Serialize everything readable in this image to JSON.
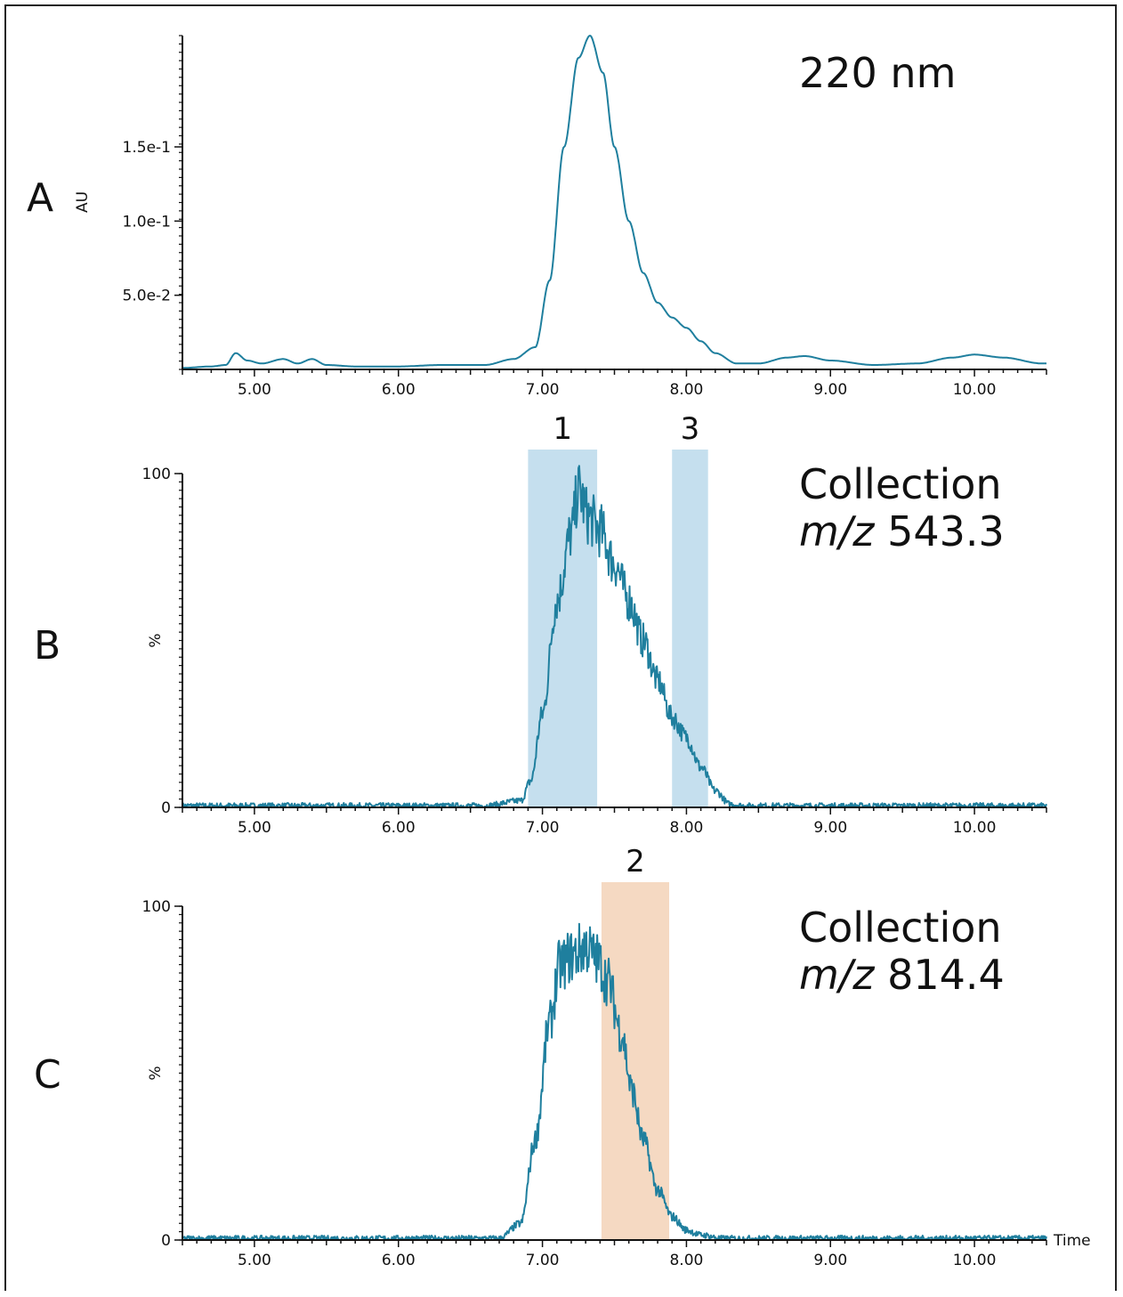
{
  "chart_data": [
    {
      "panel": "A",
      "type": "line",
      "annotation": "220 nm",
      "ylabel": "AU",
      "xlabel": "",
      "xlim": [
        4.5,
        10.5
      ],
      "ylim": [
        0,
        0.225
      ],
      "x_ticks": [
        "5.00",
        "6.00",
        "7.00",
        "8.00",
        "9.00",
        "10.00"
      ],
      "y_ticks": [
        {
          "value": 0.05,
          "label": "5.0e-2"
        },
        {
          "value": 0.1,
          "label": "1.0e-1"
        },
        {
          "value": 0.15,
          "label": "1.5e-1"
        }
      ],
      "color": "#1f7f9e",
      "series": [
        {
          "x": [
            4.5,
            4.7,
            4.8,
            4.87,
            4.95,
            5.05,
            5.2,
            5.3,
            5.4,
            5.5,
            5.7,
            6.0,
            6.3,
            6.6,
            6.8,
            6.95,
            7.05,
            7.15,
            7.25,
            7.33,
            7.42,
            7.5,
            7.6,
            7.7,
            7.8,
            7.9,
            8.0,
            8.1,
            8.2,
            8.35,
            8.5,
            8.7,
            8.82,
            9.0,
            9.3,
            9.6,
            9.85,
            10.0,
            10.2,
            10.47
          ],
          "y": [
            0.001,
            0.002,
            0.003,
            0.011,
            0.006,
            0.004,
            0.007,
            0.004,
            0.007,
            0.003,
            0.002,
            0.002,
            0.003,
            0.003,
            0.007,
            0.015,
            0.06,
            0.15,
            0.21,
            0.225,
            0.2,
            0.15,
            0.1,
            0.065,
            0.045,
            0.035,
            0.028,
            0.019,
            0.011,
            0.004,
            0.004,
            0.008,
            0.009,
            0.006,
            0.003,
            0.004,
            0.008,
            0.01,
            0.008,
            0.004
          ]
        }
      ]
    },
    {
      "panel": "B",
      "type": "line",
      "annotation_line1": "Collection",
      "annotation_mz_prefix": "m/z",
      "annotation_mz_value": "543.3",
      "ylabel": "%",
      "xlabel": "",
      "xlim": [
        4.5,
        10.5
      ],
      "ylim": [
        0,
        100
      ],
      "x_ticks": [
        "5.00",
        "6.00",
        "7.00",
        "8.00",
        "9.00",
        "10.00"
      ],
      "y_ticks": [
        {
          "value": 0,
          "label": "0"
        },
        {
          "value": 100,
          "label": "100"
        }
      ],
      "y_mid_label": "%",
      "color": "#1f7f9e",
      "regions": [
        {
          "label": "1",
          "x0": 6.9,
          "x1": 7.38,
          "color": "#c5dfee"
        },
        {
          "label": "3",
          "x0": 7.9,
          "x1": 8.15,
          "color": "#c5dfee"
        }
      ],
      "series": [
        {
          "x": [
            4.5,
            6.6,
            6.85,
            6.92,
            7.0,
            7.1,
            7.2,
            7.25,
            7.32,
            7.4,
            7.5,
            7.6,
            7.7,
            7.8,
            7.9,
            8.0,
            8.1,
            8.2,
            8.3,
            8.4,
            10.5
          ],
          "y": [
            0.5,
            0.5,
            2,
            8,
            28,
            62,
            82,
            95,
            87,
            83,
            73,
            62,
            50,
            38,
            27,
            21,
            12,
            5,
            1,
            0.5,
            0.5
          ]
        }
      ]
    },
    {
      "panel": "C",
      "type": "line",
      "annotation_line1": "Collection",
      "annotation_mz_prefix": "m/z",
      "annotation_mz_value": "814.4",
      "ylabel": "%",
      "xlabel": "Time",
      "xlim": [
        4.5,
        10.5
      ],
      "ylim": [
        0,
        100
      ],
      "x_ticks": [
        "5.00",
        "6.00",
        "7.00",
        "8.00",
        "9.00",
        "10.00"
      ],
      "y_ticks": [
        {
          "value": 0,
          "label": "0"
        },
        {
          "value": 100,
          "label": "100"
        }
      ],
      "y_mid_label": "%",
      "color": "#1f7f9e",
      "regions": [
        {
          "label": "2",
          "x0": 7.41,
          "x1": 7.88,
          "color": "#f5d9c2"
        }
      ],
      "series": [
        {
          "x": [
            4.5,
            6.7,
            6.85,
            6.95,
            7.05,
            7.12,
            7.2,
            7.3,
            7.38,
            7.45,
            7.55,
            7.62,
            7.7,
            7.8,
            7.9,
            8.0,
            8.1,
            8.25,
            10.5
          ],
          "y": [
            0.5,
            0.5,
            5,
            30,
            65,
            82,
            85,
            88,
            84,
            78,
            62,
            45,
            30,
            15,
            7,
            3,
            1.5,
            0.5,
            0.5
          ]
        }
      ]
    }
  ]
}
